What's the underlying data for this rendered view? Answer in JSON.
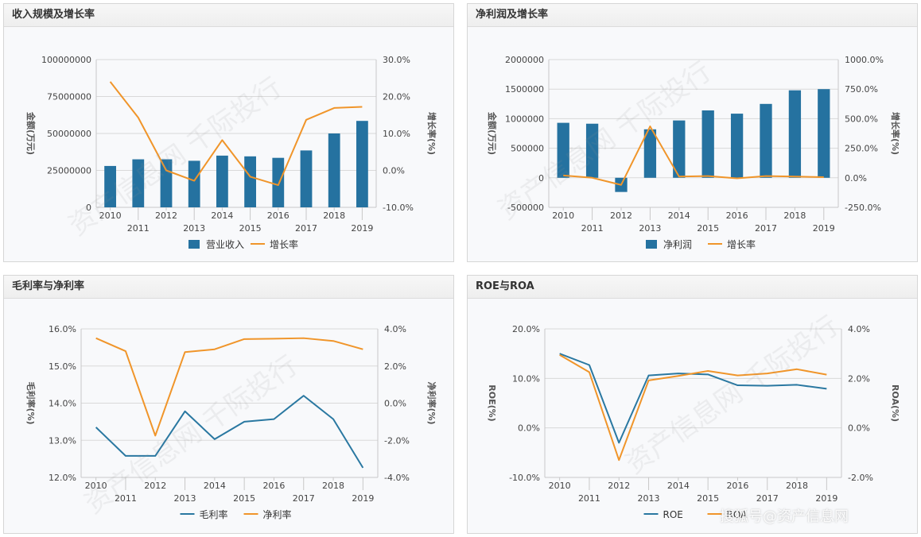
{
  "colors": {
    "bar": "#2572a0",
    "line_orange": "#f0952a",
    "line_blue": "#2a78a1",
    "grid": "#d9d9d9"
  },
  "panels": [
    {
      "title": "收入规模及增长率"
    },
    {
      "title": "净利润及增长率"
    },
    {
      "title": "毛利率与净利率"
    },
    {
      "title": "ROE与ROA"
    }
  ],
  "watermark": {
    "text": "资产信息网 千际投行",
    "footer": "搜狐号@资产信息网"
  },
  "chart_data": [
    {
      "type": "bar",
      "categories": [
        "2010",
        "2011",
        "2012",
        "2013",
        "2014",
        "2015",
        "2016",
        "2017",
        "2018",
        "2019"
      ],
      "ylabel": "金额(万元)",
      "y2label": "增长率(%)",
      "ylim": [
        0,
        100000000
      ],
      "y2lim": [
        -10,
        30
      ],
      "yticks": [
        "0",
        "25000000",
        "50000000",
        "75000000",
        "100000000"
      ],
      "y2ticks": [
        "-10.0%",
        "0.0%",
        "10.0%",
        "20.0%",
        "30.0%"
      ],
      "series": [
        {
          "name": "营业收入",
          "kind": "bar",
          "axis": "left",
          "values": [
            28000000,
            32500000,
            32500000,
            31500000,
            35000000,
            34500000,
            33500000,
            38500000,
            50000000,
            58500000
          ]
        },
        {
          "name": "增长率",
          "kind": "line",
          "axis": "right",
          "color": "orange",
          "values": [
            24.0,
            14.3,
            0.0,
            -2.8,
            8.2,
            -1.7,
            -4.0,
            13.7,
            16.9,
            17.2
          ]
        }
      ],
      "legend": "bottom"
    },
    {
      "type": "bar",
      "categories": [
        "2010",
        "2011",
        "2012",
        "2013",
        "2014",
        "2015",
        "2016",
        "2017",
        "2018",
        "2019"
      ],
      "ylabel": "金额(万元)",
      "y2label": "增长率(%)",
      "ylim": [
        -500000,
        2000000
      ],
      "y2lim": [
        -250,
        1000
      ],
      "yticks": [
        "-500000",
        "0",
        "500000",
        "1000000",
        "1500000",
        "2000000"
      ],
      "y2ticks": [
        "-250.0%",
        "0.0%",
        "250.0%",
        "500.0%",
        "750.0%",
        "1000.0%"
      ],
      "series": [
        {
          "name": "净利润",
          "kind": "bar",
          "axis": "left",
          "values": [
            930000,
            915000,
            -240000,
            820000,
            970000,
            1140000,
            1085000,
            1250000,
            1480000,
            1500000
          ]
        },
        {
          "name": "增长率",
          "kind": "line",
          "axis": "right",
          "color": "orange",
          "values": [
            20,
            0,
            -60,
            435,
            10,
            15,
            -5,
            15,
            10,
            5
          ]
        }
      ],
      "legend": "bottom"
    },
    {
      "type": "line",
      "categories": [
        "2010",
        "2011",
        "2012",
        "2013",
        "2014",
        "2015",
        "2016",
        "2017",
        "2018",
        "2019"
      ],
      "ylabel": "毛利率(%)",
      "y2label": "净利率(%)",
      "ylim": [
        12,
        16
      ],
      "y2lim": [
        -4,
        4
      ],
      "yticks": [
        "12.0%",
        "13.0%",
        "14.0%",
        "15.0%",
        "16.0%"
      ],
      "y2ticks": [
        "-4.0%",
        "-2.0%",
        "0.0%",
        "2.0%",
        "4.0%"
      ],
      "series": [
        {
          "name": "毛利率",
          "kind": "line",
          "axis": "left",
          "color": "blue",
          "values": [
            13.35,
            12.58,
            12.58,
            13.78,
            13.03,
            13.5,
            13.57,
            14.2,
            13.57,
            12.26
          ]
        },
        {
          "name": "净利率",
          "kind": "line",
          "axis": "right",
          "color": "orange",
          "values": [
            3.5,
            2.8,
            -1.75,
            2.75,
            2.9,
            3.45,
            3.47,
            3.5,
            3.35,
            2.9
          ]
        }
      ],
      "legend": "bottom"
    },
    {
      "type": "line",
      "categories": [
        "2010",
        "2011",
        "2012",
        "2013",
        "2014",
        "2015",
        "2016",
        "2017",
        "2018",
        "2019"
      ],
      "ylabel": "ROE(%)",
      "y2label": "ROA(%)",
      "ylim": [
        -10,
        20
      ],
      "y2lim": [
        -2,
        4
      ],
      "yticks": [
        "-10.0%",
        "0.0%",
        "10.0%",
        "20.0%"
      ],
      "y2ticks": [
        "-2.0%",
        "0.0%",
        "2.0%",
        "4.0%"
      ],
      "series": [
        {
          "name": "ROE",
          "kind": "line",
          "axis": "left",
          "color": "blue",
          "values": [
            15.0,
            12.7,
            -3.0,
            10.6,
            11.0,
            10.8,
            8.6,
            8.5,
            8.7,
            7.9
          ]
        },
        {
          "name": "ROA",
          "kind": "line",
          "axis": "right",
          "color": "orange",
          "values": [
            2.95,
            2.25,
            -1.3,
            1.92,
            2.1,
            2.3,
            2.12,
            2.2,
            2.37,
            2.15
          ]
        }
      ],
      "legend": "bottom"
    }
  ]
}
